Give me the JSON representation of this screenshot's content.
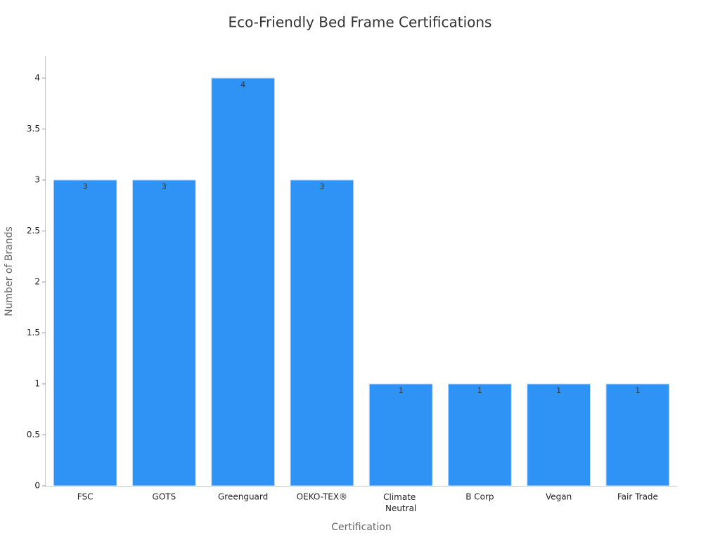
{
  "chart_data": {
    "type": "bar",
    "title": "Eco-Friendly Bed Frame Certifications",
    "x_label": "Certification",
    "y_label": "Number of Brands",
    "categories": [
      "FSC",
      "GOTS",
      "Greenguard",
      "OEKO-TEX®",
      "Climate Neutral",
      "B Corp",
      "Vegan",
      "Fair Trade"
    ],
    "values": [
      3,
      3,
      4,
      3,
      1,
      1,
      1,
      1
    ],
    "color": "#2f93f6",
    "ylim": [
      0,
      4.2
    ],
    "yticks": [
      0,
      0.5,
      1,
      1.5,
      2,
      2.5,
      3,
      3.5,
      4
    ],
    "grid": false
  }
}
